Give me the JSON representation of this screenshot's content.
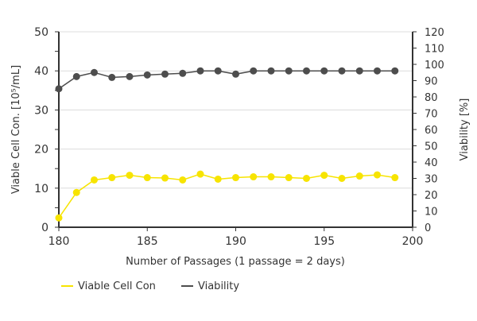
{
  "chart_data": {
    "type": "line",
    "title": "",
    "xlabel": "Number of Passages (1 passage = 2 days)",
    "ylabel_left": "Viable Cell Con. [10⁵/mL]",
    "ylabel_right": "Viability [%]",
    "xlim": [
      180,
      200
    ],
    "ylim_left": [
      0,
      50
    ],
    "ylim_right": [
      0,
      120
    ],
    "x_ticks": [
      180,
      185,
      190,
      195,
      200
    ],
    "y_ticks_left": [
      0,
      10,
      20,
      30,
      40,
      50
    ],
    "y_ticks_right": [
      0,
      10,
      20,
      30,
      40,
      50,
      60,
      70,
      80,
      90,
      100,
      110,
      120
    ],
    "grid": "horizontal",
    "legend_position": "bottom-left",
    "x": [
      180,
      181,
      182,
      183,
      184,
      185,
      186,
      187,
      188,
      189,
      190,
      191,
      192,
      193,
      194,
      195,
      196,
      197,
      198,
      199
    ],
    "series": [
      {
        "name": "Viable Cell Con",
        "axis": "left",
        "color": "#f7e400",
        "values": [
          2.4,
          8.9,
          12.1,
          12.7,
          13.3,
          12.7,
          12.6,
          12.1,
          13.6,
          12.3,
          12.7,
          12.9,
          12.9,
          12.7,
          12.5,
          13.3,
          12.5,
          13.1,
          13.4,
          12.7
        ]
      },
      {
        "name": "Viability",
        "axis": "right",
        "color": "#4d4d4d",
        "values": [
          85,
          92.5,
          95,
          92,
          92.5,
          93.5,
          94,
          94.5,
          96,
          96,
          94,
          96,
          96,
          96,
          96,
          96,
          96,
          96,
          96,
          96
        ]
      }
    ]
  }
}
